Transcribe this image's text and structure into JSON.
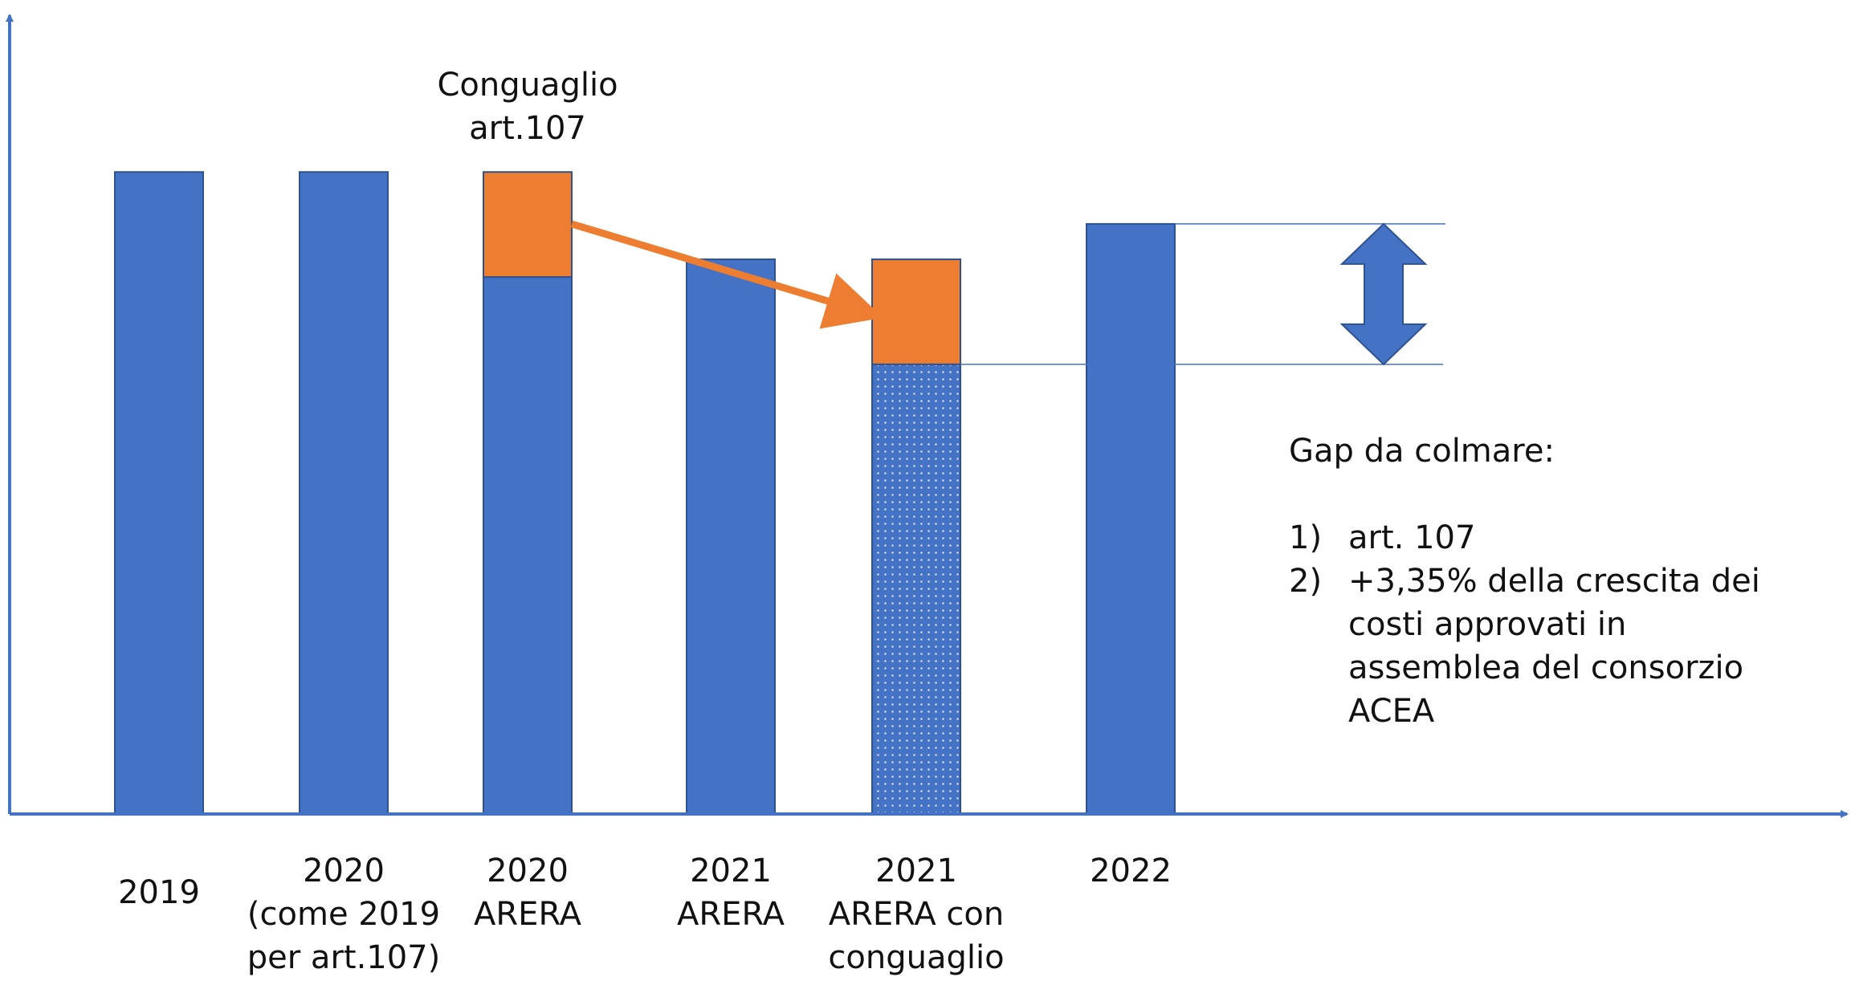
{
  "chart_data": {
    "type": "bar",
    "categories": [
      "2019",
      "2020\n(come 2019\nper art.107)",
      "2020\nARERA",
      "2021\nARERA",
      "2021\nARERA con\nconguaglio",
      "2022"
    ],
    "series": [
      {
        "color": "#4472c4",
        "values": [
          544,
          544,
          455,
          470,
          381,
          500
        ],
        "patterns": [
          null,
          null,
          null,
          null,
          "dots",
          null
        ]
      },
      {
        "color": "#ed7d31",
        "values": [
          null,
          null,
          89,
          null,
          89,
          null
        ]
      }
    ],
    "ylim": [
      0,
      670
    ],
    "annotations": {
      "bar_note": "Conguaglio\nart.107",
      "gap_title": "Gap da colmare:",
      "gap_items": [
        {
          "marker": "1)",
          "text": "art. 107"
        },
        {
          "marker": "2)",
          "text": "+3,35% della crescita dei costi approvati in assemblea del consorzio ACEA"
        }
      ]
    }
  }
}
